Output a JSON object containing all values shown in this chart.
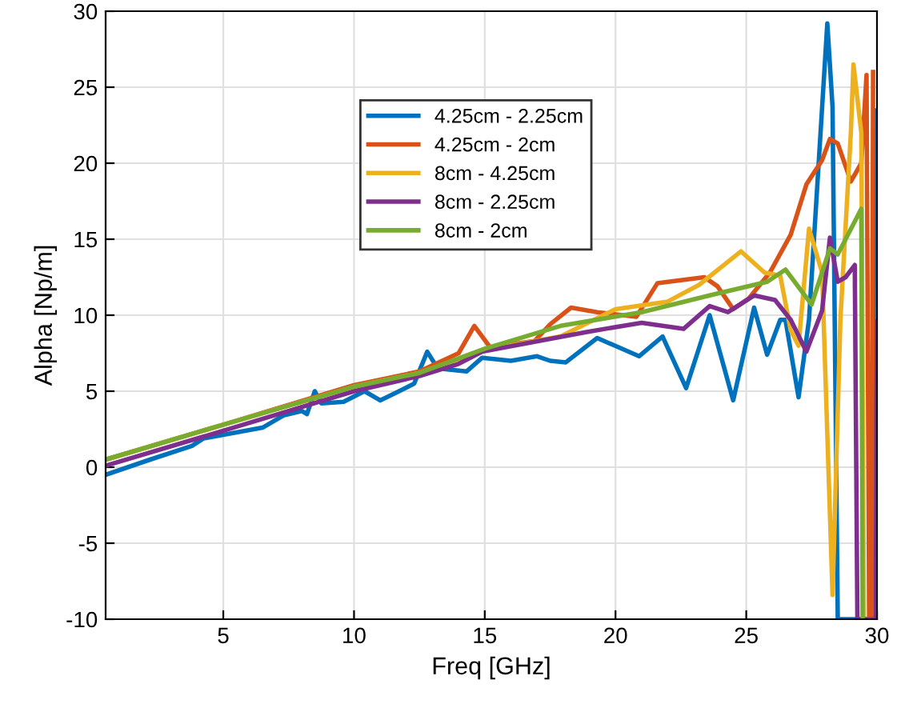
{
  "chart_data": {
    "type": "line",
    "xlabel": "Freq [GHz]",
    "ylabel": "Alpha [Np/m]",
    "xlim": [
      0.5,
      30
    ],
    "ylim": [
      -10,
      30
    ],
    "xticks": [
      5,
      10,
      15,
      20,
      25,
      30
    ],
    "yticks": [
      -10,
      -5,
      0,
      5,
      10,
      15,
      20,
      25,
      30
    ],
    "grid": true,
    "legend": "top",
    "line_style": "solid",
    "marker": "none",
    "series": [
      {
        "name": "4.25cm - 2.25cm",
        "color": "#0072bd",
        "x": [
          0.5,
          2.2,
          3.8,
          4.25,
          6.5,
          7.3,
          8.0,
          8.2,
          8.5,
          8.75,
          9.6,
          10.4,
          11.0,
          11.6,
          12.3,
          12.8,
          13.2,
          14.3,
          14.9,
          16.0,
          17.0,
          17.5,
          18.1,
          19.3,
          20.9,
          21.8,
          22.7,
          23.6,
          24.5,
          25.3,
          25.8,
          26.3,
          26.5,
          27.0,
          27.4,
          28.1,
          28.3,
          28.5,
          29.85,
          29.9,
          30
        ],
        "values": [
          -0.5,
          0.5,
          1.4,
          1.9,
          2.6,
          3.4,
          3.7,
          3.5,
          5.0,
          4.2,
          4.3,
          5.0,
          4.4,
          4.9,
          5.5,
          7.6,
          6.5,
          6.3,
          7.2,
          7.0,
          7.3,
          7.0,
          6.9,
          8.5,
          7.3,
          8.6,
          5.2,
          10.0,
          4.4,
          10.5,
          7.4,
          9.7,
          9.7,
          4.6,
          9.7,
          29.2,
          23.7,
          -10,
          -10,
          23.5,
          23
        ]
      },
      {
        "name": "4.25cm - 2cm",
        "color": "#d95319",
        "x": [
          0.5,
          5,
          10,
          12.5,
          14.0,
          14.6,
          15.2,
          16.9,
          17.5,
          18.3,
          19.3,
          20.8,
          21.6,
          23.4,
          23.9,
          24.5,
          25.1,
          25.9,
          26.7,
          27.3,
          27.9,
          28.2,
          28.5,
          29.0,
          29.4,
          29.6,
          29.7,
          29.8,
          29.85
        ],
        "values": [
          0.5,
          2.8,
          5.4,
          6.3,
          7.5,
          9.3,
          7.9,
          8.3,
          9.4,
          10.5,
          10.2,
          9.9,
          12.1,
          12.5,
          11.9,
          10.4,
          11.1,
          12.8,
          15.3,
          18.6,
          20.2,
          21.6,
          21.3,
          18.8,
          20.0,
          25.8,
          -10,
          -10,
          26
        ]
      },
      {
        "name": "8cm - 4.25cm",
        "color": "#edb120",
        "x": [
          0.5,
          5,
          10,
          12.5,
          15,
          17.9,
          20,
          22,
          23.2,
          24.8,
          25.7,
          26.3,
          26.7,
          27.0,
          27.4,
          27.9,
          28.3,
          28.6,
          29.0,
          29.1,
          29.4,
          29.5,
          29.95,
          30
        ],
        "values": [
          0.5,
          2.8,
          5.3,
          6.2,
          7.7,
          8.6,
          10.4,
          10.9,
          12.0,
          14.2,
          12.8,
          12.6,
          9.0,
          8.0,
          15.7,
          12.8,
          -8.4,
          9.7,
          22.0,
          26.5,
          22.0,
          -10,
          -10,
          3.7
        ]
      },
      {
        "name": "8cm - 2.25cm",
        "color": "#7e2f8e",
        "x": [
          0.5,
          5,
          10,
          12.5,
          14.0,
          14.9,
          18.9,
          21,
          22.6,
          23.6,
          24.3,
          25.3,
          26.1,
          26.7,
          27.3,
          27.9,
          28.2,
          28.5,
          28.8,
          29.15,
          29.25,
          29.95,
          30
        ],
        "values": [
          0.1,
          2.4,
          5.0,
          6.0,
          6.8,
          7.6,
          8.9,
          9.5,
          9.1,
          10.6,
          10.2,
          11.3,
          11.0,
          9.7,
          7.6,
          10.3,
          15.1,
          12.2,
          12.5,
          13.3,
          -10,
          -10,
          9.6
        ]
      },
      {
        "name": "8cm - 2cm",
        "color": "#77ac30",
        "x": [
          0.5,
          5,
          10,
          12.5,
          15,
          17.9,
          21,
          23.6,
          25.8,
          26.5,
          27.5,
          28.2,
          28.5,
          29.4,
          29.45
        ],
        "values": [
          0.5,
          2.8,
          5.3,
          6.2,
          7.8,
          9.3,
          10.2,
          11.3,
          12.2,
          13.0,
          10.7,
          14.4,
          14.0,
          17.0,
          -10
        ]
      }
    ]
  }
}
